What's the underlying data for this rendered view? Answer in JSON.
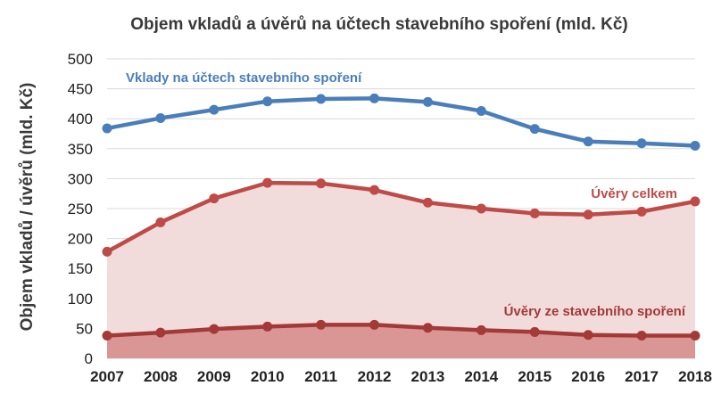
{
  "chart_data": {
    "type": "line",
    "title": "Objem vkladů a úvěrů na účtech stavebního spoření  (mld. Kč)",
    "xlabel": "",
    "ylabel": "Objem vkladů / úvěrů (mld. Kč)",
    "ylim": [
      0,
      500
    ],
    "yticks": [
      "0",
      "50",
      "100",
      "150",
      "200",
      "250",
      "300",
      "350",
      "400",
      "450",
      "500"
    ],
    "grid": true,
    "categories": [
      "2007",
      "2008",
      "2009",
      "2010",
      "2011",
      "2012",
      "2013",
      "2014",
      "2015",
      "2016",
      "2017",
      "2018"
    ],
    "series": [
      {
        "name": "Vklady na účtech stavebního spoření",
        "color": "#4a7ebb",
        "values": [
          384,
          401,
          415,
          429,
          433,
          434,
          428,
          413,
          383,
          362,
          359,
          355
        ]
      },
      {
        "name": "Úvěry celkem",
        "color": "#be4b48",
        "fill": "#f2dcdb",
        "values": [
          178,
          227,
          267,
          293,
          292,
          281,
          260,
          250,
          242,
          240,
          245,
          262
        ]
      },
      {
        "name": "Úvěry ze stavebního spoření",
        "color": "#a33a37",
        "fill": "#d99694",
        "values": [
          38,
          43,
          49,
          53,
          56,
          56,
          51,
          47,
          44,
          39,
          38,
          38
        ]
      }
    ]
  }
}
